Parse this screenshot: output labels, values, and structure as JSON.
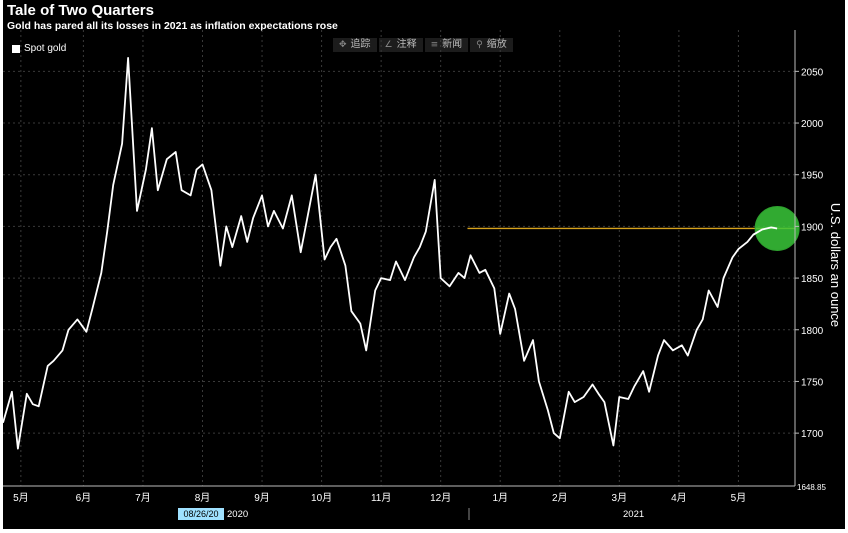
{
  "title": "Tale of Two Quarters",
  "subtitle": "Gold has pared all its losses in 2021 as inflation expectations rose",
  "legend": {
    "label": "Spot gold"
  },
  "toolbar": [
    {
      "icon": "✥",
      "label": "追踪"
    },
    {
      "icon": "∠",
      "label": "注释"
    },
    {
      "icon": "≡",
      "label": "新闻"
    },
    {
      "icon": "⚲",
      "label": "缩放"
    }
  ],
  "date_box": "08/26/20",
  "year_2020": "2020",
  "year_2021": "2021",
  "last_value_label": "1648.85",
  "chart_data": {
    "type": "line",
    "title": "Tale of Two Quarters",
    "subtitle": "Gold has pared all its losses in 2021 as inflation expectations rose",
    "ylabel": "U.S. dollars an ounce",
    "ylim": [
      1648.85,
      2090
    ],
    "y_ticks": [
      1700,
      1750,
      1800,
      1850,
      1900,
      1950,
      2000,
      2050
    ],
    "x_ticks": [
      "5月",
      "6月",
      "7月",
      "8月",
      "9月",
      "10月",
      "11月",
      "12月",
      "1月",
      "2月",
      "3月",
      "4月",
      "5月"
    ],
    "x_tick_positions": [
      0.3,
      1.35,
      2.35,
      3.35,
      4.35,
      5.35,
      6.35,
      7.35,
      8.35,
      9.35,
      10.35,
      11.35,
      12.35
    ],
    "grid": true,
    "legend_position": "top-left",
    "reference_line": {
      "value": 1898,
      "x_start": 7.8,
      "color": "#d6a21c"
    },
    "highlight_circle": {
      "x": 13.0,
      "y": 1898,
      "color": "#39c839"
    },
    "series": [
      {
        "name": "Spot gold",
        "color": "#ffffff",
        "x": [
          0.0,
          0.15,
          0.25,
          0.4,
          0.5,
          0.6,
          0.75,
          0.85,
          1.0,
          1.1,
          1.25,
          1.4,
          1.5,
          1.65,
          1.75,
          1.85,
          2.0,
          2.1,
          2.25,
          2.4,
          2.5,
          2.6,
          2.75,
          2.9,
          3.0,
          3.15,
          3.25,
          3.35,
          3.5,
          3.65,
          3.75,
          3.85,
          4.0,
          4.1,
          4.2,
          4.35,
          4.45,
          4.55,
          4.7,
          4.85,
          5.0,
          5.1,
          5.25,
          5.4,
          5.5,
          5.6,
          5.75,
          5.85,
          6.0,
          6.1,
          6.25,
          6.35,
          6.5,
          6.6,
          6.75,
          6.9,
          7.0,
          7.1,
          7.25,
          7.35,
          7.5,
          7.65,
          7.75,
          7.85,
          8.0,
          8.1,
          8.25,
          8.35,
          8.5,
          8.6,
          8.75,
          8.9,
          9.0,
          9.15,
          9.25,
          9.35,
          9.5,
          9.6,
          9.75,
          9.9,
          10.0,
          10.1,
          10.25,
          10.35,
          10.5,
          10.6,
          10.75,
          10.85,
          11.0,
          11.1,
          11.25,
          11.4,
          11.5,
          11.65,
          11.75,
          11.85,
          12.0,
          12.1,
          12.25,
          12.35,
          12.5,
          12.6,
          12.75,
          12.9,
          13.0
        ],
        "values": [
          1710,
          1740,
          1685,
          1738,
          1728,
          1726,
          1765,
          1770,
          1780,
          1800,
          1810,
          1798,
          1820,
          1855,
          1895,
          1940,
          1980,
          2063,
          1915,
          1955,
          1995,
          1935,
          1965,
          1972,
          1935,
          1930,
          1955,
          1960,
          1935,
          1862,
          1900,
          1880,
          1910,
          1885,
          1908,
          1930,
          1900,
          1915,
          1898,
          1930,
          1875,
          1905,
          1950,
          1868,
          1880,
          1888,
          1862,
          1818,
          1806,
          1780,
          1838,
          1850,
          1848,
          1866,
          1848,
          1870,
          1880,
          1895,
          1945,
          1850,
          1842,
          1855,
          1850,
          1872,
          1855,
          1858,
          1840,
          1796,
          1835,
          1820,
          1770,
          1790,
          1750,
          1722,
          1700,
          1695,
          1740,
          1730,
          1735,
          1747,
          1738,
          1730,
          1688,
          1735,
          1733,
          1745,
          1760,
          1740,
          1775,
          1790,
          1780,
          1785,
          1775,
          1800,
          1810,
          1838,
          1822,
          1850,
          1870,
          1878,
          1885,
          1892,
          1897,
          1899,
          1898
        ]
      }
    ]
  }
}
